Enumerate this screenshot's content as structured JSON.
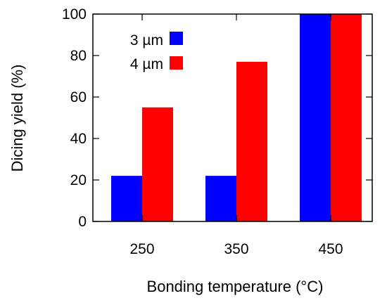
{
  "chart_data": {
    "type": "bar",
    "categories": [
      "250",
      "350",
      "450"
    ],
    "series": [
      {
        "name": "3 µm",
        "color": "#0000ff",
        "values": [
          22,
          22,
          100
        ]
      },
      {
        "name": "4 µm",
        "color": "#ff0000",
        "values": [
          55,
          77,
          100
        ]
      }
    ],
    "title": "",
    "xlabel": "Bonding temperature (°C)",
    "ylabel": "Dicing yield (%)",
    "ylim": [
      0,
      100
    ],
    "yticks": [
      "0",
      "20",
      "40",
      "60",
      "80",
      "100"
    ],
    "grid": false,
    "legend": "top-left"
  }
}
